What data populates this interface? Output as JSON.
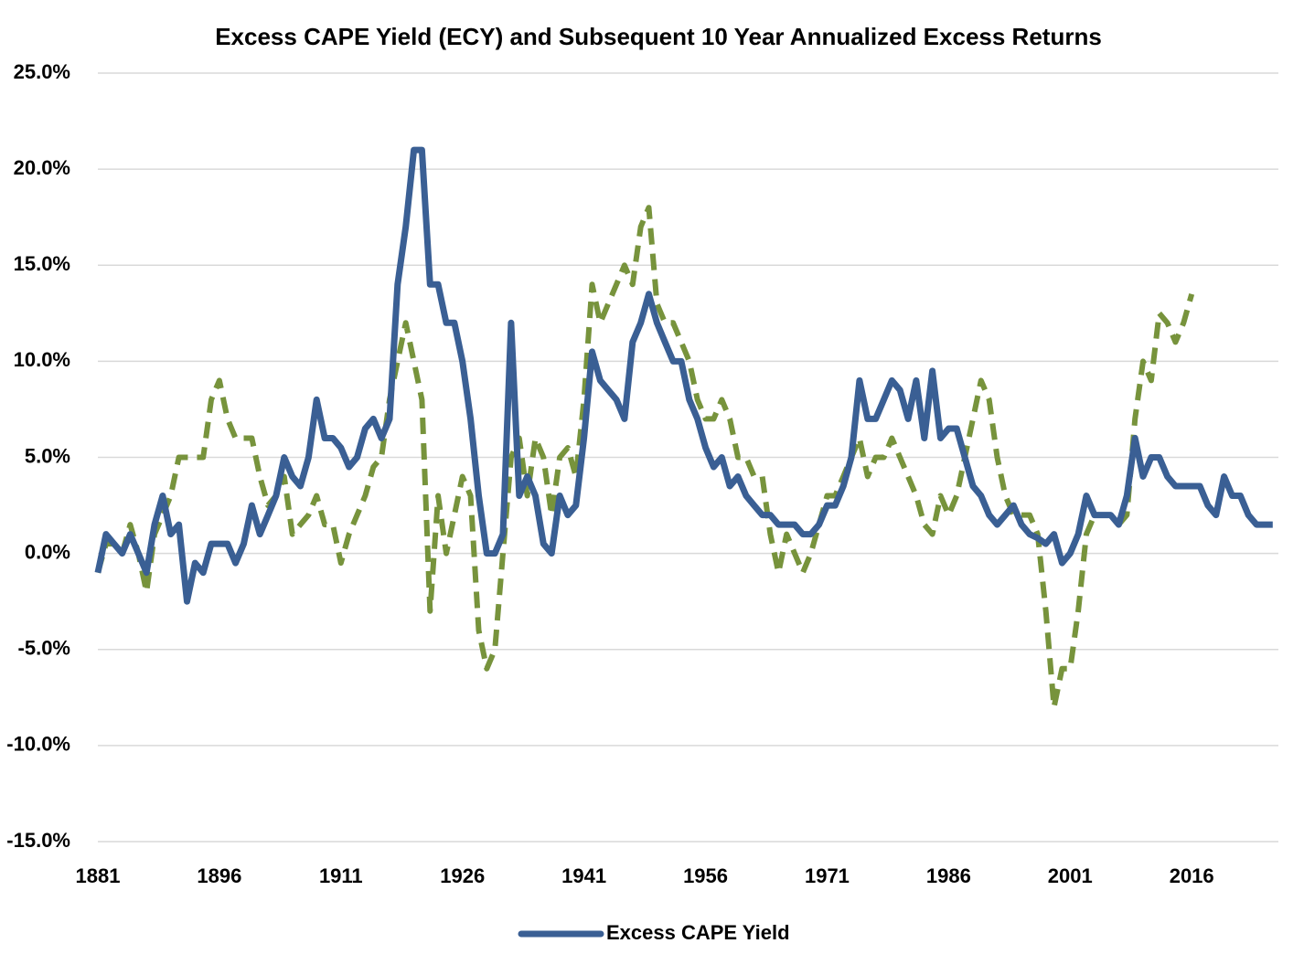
{
  "chart_data": {
    "type": "line",
    "title": "Excess CAPE Yield (ECY) and Subsequent 10 Year Annualized Excess Returns",
    "x": [
      1881,
      1882,
      1883,
      1884,
      1885,
      1886,
      1887,
      1888,
      1889,
      1890,
      1891,
      1892,
      1893,
      1894,
      1895,
      1896,
      1897,
      1898,
      1899,
      1900,
      1901,
      1902,
      1903,
      1904,
      1905,
      1906,
      1907,
      1908,
      1909,
      1910,
      1911,
      1912,
      1913,
      1914,
      1915,
      1916,
      1917,
      1918,
      1919,
      1920,
      1921,
      1922,
      1923,
      1924,
      1925,
      1926,
      1927,
      1928,
      1929,
      1930,
      1931,
      1932,
      1933,
      1934,
      1935,
      1936,
      1937,
      1938,
      1939,
      1940,
      1941,
      1942,
      1943,
      1944,
      1945,
      1946,
      1947,
      1948,
      1949,
      1950,
      1951,
      1952,
      1953,
      1954,
      1955,
      1956,
      1957,
      1958,
      1959,
      1960,
      1961,
      1962,
      1963,
      1964,
      1965,
      1966,
      1967,
      1968,
      1969,
      1970,
      1971,
      1972,
      1973,
      1974,
      1975,
      1976,
      1977,
      1978,
      1979,
      1980,
      1981,
      1982,
      1983,
      1984,
      1985,
      1986,
      1987,
      1988,
      1989,
      1990,
      1991,
      1992,
      1993,
      1994,
      1995,
      1996,
      1997,
      1998,
      1999,
      2000,
      2001,
      2002,
      2003,
      2004,
      2005,
      2006,
      2007,
      2008,
      2009,
      2010,
      2011,
      2012,
      2013,
      2014,
      2015,
      2016,
      2017,
      2018,
      2019,
      2020,
      2021,
      2022,
      2023,
      2024,
      2025,
      2026
    ],
    "series": [
      {
        "name": "Excess CAPE Yield",
        "color": "#3a5f94",
        "dashed": false,
        "values": [
          -1,
          1,
          0.5,
          0,
          1,
          0,
          -1,
          1.5,
          3,
          1,
          1.5,
          -2.5,
          -0.5,
          -1,
          0.5,
          0.5,
          0.5,
          -0.5,
          0.5,
          2.5,
          1,
          2,
          3,
          5,
          4,
          3.5,
          5,
          8,
          6,
          6,
          5.5,
          4.5,
          5,
          6.5,
          7,
          6,
          7,
          14,
          17,
          21,
          21,
          14,
          14,
          12,
          12,
          10,
          7,
          3,
          0,
          0,
          1,
          12,
          3,
          4,
          3,
          0.5,
          0,
          3,
          2,
          2.5,
          6,
          10.5,
          9,
          8.5,
          8,
          7,
          11,
          12,
          13.5,
          12,
          11,
          10,
          10,
          8,
          7,
          5.5,
          4.5,
          5,
          3.5,
          4,
          3,
          2.5,
          2,
          2,
          1.5,
          1.5,
          1.5,
          1,
          1,
          1.5,
          2.5,
          2.5,
          3.5,
          5,
          9,
          7,
          7,
          8,
          9,
          8.5,
          7,
          9,
          6,
          9.5,
          6,
          6.5,
          6.5,
          5,
          3.5,
          3,
          2,
          1.5,
          2,
          2.5,
          1.5,
          1,
          0.8,
          0.5,
          1,
          -0.5,
          0,
          1,
          3,
          2,
          2,
          2,
          1.5,
          3,
          6,
          4,
          5,
          5,
          4,
          3.5,
          3.5,
          3.5,
          3.5,
          2.5,
          2,
          4,
          3,
          3,
          2,
          1.5,
          1.5,
          1.5
        ]
      },
      {
        "color": "#77933c",
        "dashed": true,
        "values": [
          -1,
          0.5,
          0.5,
          0,
          1.5,
          0,
          -2,
          1,
          2,
          3,
          5,
          5,
          5,
          5,
          8,
          9,
          7,
          6,
          6,
          6,
          4,
          2.5,
          3,
          4,
          1,
          1.5,
          2,
          3,
          1.5,
          1.5,
          -0.5,
          1,
          2,
          3,
          4.5,
          5,
          8,
          10,
          12,
          10,
          8,
          -3,
          3,
          0,
          2,
          4,
          3,
          -4,
          -6,
          -5,
          0,
          5,
          6,
          3,
          6,
          5,
          2,
          5,
          5.5,
          4,
          8,
          14,
          12,
          13,
          14,
          15,
          14,
          17,
          18,
          13,
          12,
          12,
          11,
          10,
          8,
          7,
          7,
          8,
          7,
          5,
          5,
          4,
          4,
          1,
          -1,
          1,
          0,
          -1,
          0,
          1.5,
          3,
          3,
          4,
          5,
          6,
          4,
          5,
          5,
          6,
          5,
          4,
          3,
          1.5,
          1,
          3,
          2,
          3,
          5,
          7,
          9,
          8,
          5,
          3,
          2,
          2,
          2,
          1,
          -3,
          -8,
          -6,
          -6,
          -3,
          1,
          2,
          2,
          2,
          1.5,
          2,
          7,
          10,
          9,
          12.5,
          12,
          11,
          12,
          13.5,
          null,
          null,
          null,
          null,
          null,
          null,
          null,
          null,
          null,
          null
        ]
      }
    ],
    "xlim": [
      1881,
      2026.7
    ],
    "xticks": [
      1881,
      1896,
      1911,
      1926,
      1941,
      1956,
      1971,
      1986,
      2001,
      2016
    ],
    "ylim": [
      -15,
      25
    ],
    "yticks": [
      {
        "value": -15,
        "label": "-15.0%"
      },
      {
        "value": -10,
        "label": "-10.0%"
      },
      {
        "value": -5,
        "label": "-5.0%"
      },
      {
        "value": 0,
        "label": "0.0%"
      },
      {
        "value": 5,
        "label": "5.0%"
      },
      {
        "value": 10,
        "label": "10.0%"
      },
      {
        "value": 15,
        "label": "15.0%"
      },
      {
        "value": 20,
        "label": "20.0%"
      },
      {
        "value": 25,
        "label": "25.0%"
      }
    ],
    "grid": true,
    "legend": "bottom"
  }
}
